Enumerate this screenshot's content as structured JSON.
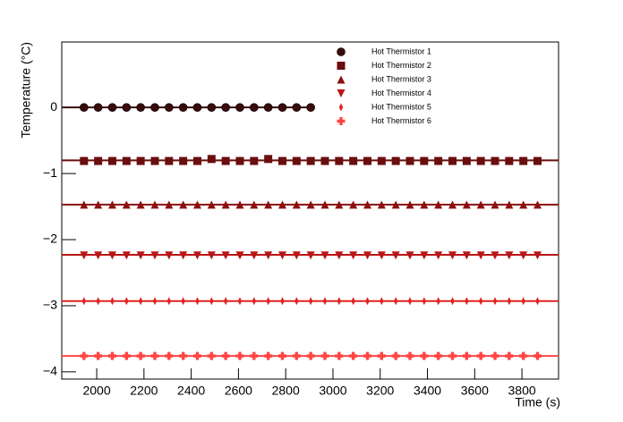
{
  "chart_data": {
    "type": "scatter",
    "x_label": "Time (s)",
    "y_label": "Temperature (°C)",
    "xlim": [
      1852,
      3955
    ],
    "ylim": [
      -4.11,
      0.99
    ],
    "xticks": [
      2000,
      2200,
      2400,
      2600,
      2800,
      3000,
      3200,
      3400,
      3600,
      3800
    ],
    "yticks": [
      {
        "value": -4,
        "label": "−4"
      },
      {
        "value": -3,
        "label": "−3"
      },
      {
        "value": -2,
        "label": "−2"
      },
      {
        "value": -1,
        "label": "−1"
      },
      0
    ],
    "legend": "top-center",
    "x": [
      1946,
      2006,
      2066,
      2126,
      2186,
      2246,
      2306,
      2366,
      2426,
      2486,
      2546,
      2606,
      2666,
      2726,
      2786,
      2846,
      2906,
      2966,
      3026,
      3086,
      3146,
      3206,
      3266,
      3326,
      3386,
      3446,
      3506,
      3566,
      3626,
      3686,
      3746,
      3806,
      3866
    ],
    "series": [
      {
        "name": "Hot Thermistor 1",
        "color": "#3a0b0b",
        "marker": "circle",
        "fit": 0,
        "values": [
          0,
          0,
          0,
          0,
          0,
          0,
          0,
          0,
          0,
          0,
          0,
          0,
          0,
          0,
          0,
          0,
          0,
          null,
          null,
          null,
          null,
          null,
          null,
          null,
          null,
          null,
          null,
          null,
          null,
          null,
          null,
          null,
          null
        ]
      },
      {
        "name": "Hot Thermistor 2",
        "color": "#6a0e0e",
        "marker": "square",
        "fit": -0.8,
        "values": [
          -0.81,
          -0.81,
          -0.81,
          -0.81,
          -0.81,
          -0.81,
          -0.81,
          -0.81,
          -0.81,
          -0.78,
          -0.81,
          -0.81,
          -0.81,
          -0.78,
          -0.81,
          -0.81,
          -0.81,
          -0.81,
          -0.81,
          -0.81,
          -0.81,
          -0.81,
          -0.81,
          -0.81,
          -0.81,
          -0.81,
          -0.81,
          -0.81,
          -0.81,
          -0.81,
          -0.81,
          -0.81,
          -0.81
        ]
      },
      {
        "name": "Hot Thermistor 3",
        "color": "#8c1010",
        "marker": "triangle-up",
        "fit": -1.47,
        "values": [
          -1.47,
          -1.47,
          -1.47,
          -1.47,
          -1.47,
          -1.47,
          -1.47,
          -1.47,
          -1.47,
          -1.47,
          -1.47,
          -1.47,
          -1.47,
          -1.47,
          -1.47,
          -1.47,
          -1.47,
          -1.47,
          -1.47,
          -1.47,
          -1.47,
          -1.47,
          -1.47,
          -1.47,
          -1.47,
          -1.47,
          -1.47,
          -1.47,
          -1.47,
          -1.47,
          -1.47,
          -1.47,
          -1.47
        ]
      },
      {
        "name": "Hot Thermistor 4",
        "color": "#b81616",
        "marker": "triangle-down",
        "fit": -2.23,
        "values": [
          -2.24,
          -2.24,
          -2.24,
          -2.24,
          -2.24,
          -2.24,
          -2.24,
          -2.24,
          -2.24,
          -2.24,
          -2.24,
          -2.24,
          -2.24,
          -2.24,
          -2.24,
          -2.24,
          -2.24,
          -2.24,
          -2.24,
          -2.24,
          -2.24,
          -2.24,
          -2.24,
          -2.24,
          -2.24,
          -2.24,
          -2.24,
          -2.24,
          -2.24,
          -2.24,
          -2.24,
          -2.24,
          -2.24
        ]
      },
      {
        "name": "Hot Thermistor 5",
        "color": "#e02222",
        "marker": "diamond",
        "fit": -2.93,
        "values": [
          -2.93,
          -2.93,
          -2.93,
          -2.93,
          -2.93,
          -2.93,
          -2.93,
          -2.93,
          -2.93,
          -2.93,
          -2.93,
          -2.93,
          -2.93,
          -2.93,
          -2.93,
          -2.93,
          -2.93,
          -2.93,
          -2.93,
          -2.93,
          -2.93,
          -2.93,
          -2.93,
          -2.93,
          -2.93,
          -2.93,
          -2.93,
          -2.93,
          -2.93,
          -2.93,
          -2.93,
          -2.93,
          -2.93
        ]
      },
      {
        "name": "Hot Thermistor 6",
        "color": "#ff4444",
        "marker": "cross",
        "fit": -3.76,
        "values": [
          -3.76,
          -3.76,
          -3.76,
          -3.76,
          -3.76,
          -3.76,
          -3.76,
          -3.76,
          -3.76,
          -3.76,
          -3.76,
          -3.76,
          -3.76,
          -3.76,
          -3.76,
          -3.76,
          -3.76,
          -3.76,
          -3.76,
          -3.76,
          -3.76,
          -3.76,
          -3.76,
          -3.76,
          -3.76,
          -3.76,
          -3.76,
          -3.76,
          -3.76,
          -3.76,
          -3.76,
          -3.76,
          -3.76
        ]
      }
    ]
  }
}
